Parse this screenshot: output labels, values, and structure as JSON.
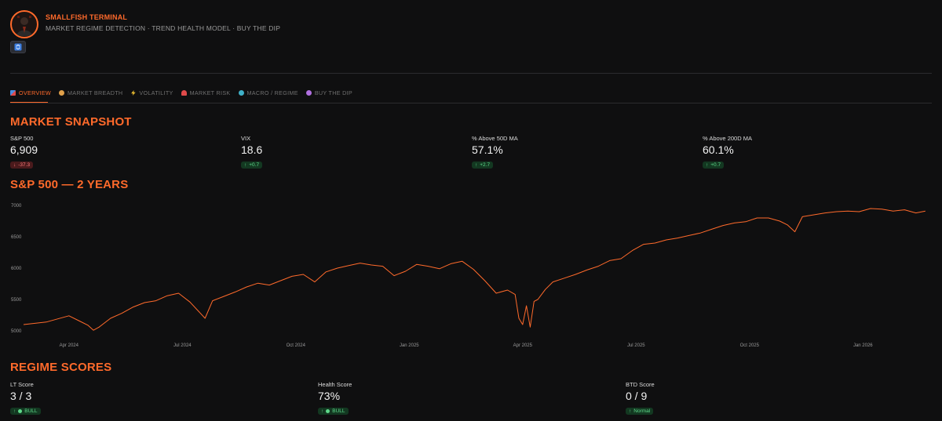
{
  "header": {
    "title": "SMALLFISH TERMINAL",
    "subtitle": "MARKET REGIME DETECTION · TREND HEALTH MODEL · BUY THE DIP"
  },
  "tabs": [
    {
      "label": "OVERVIEW",
      "icon": "chart-icon"
    },
    {
      "label": "MARKET BREADTH",
      "icon": "globe-icon"
    },
    {
      "label": "VOLATILITY",
      "icon": "lightning-icon"
    },
    {
      "label": "MARKET RISK",
      "icon": "siren-icon"
    },
    {
      "label": "MACRO / REGIME",
      "icon": "earth-icon"
    },
    {
      "label": "BUY THE DIP",
      "icon": "bubble-icon"
    }
  ],
  "snapshot": {
    "title": "MARKET SNAPSHOT",
    "metrics": [
      {
        "label": "S&P 500",
        "value": "6,909",
        "change": "-37.3",
        "direction": "down"
      },
      {
        "label": "VIX",
        "value": "18.6",
        "change": "+0.7",
        "direction": "up"
      },
      {
        "label": "% Above 50D MA",
        "value": "57.1%",
        "change": "+2.7",
        "direction": "up"
      },
      {
        "label": "% Above 200D MA",
        "value": "60.1%",
        "change": "+0.7",
        "direction": "up"
      }
    ]
  },
  "chart_title": "S&P 500 — 2 YEARS",
  "chart_data": {
    "type": "line",
    "title": "S&P 500 — 2 YEARS",
    "xlabel": "",
    "ylabel": "",
    "ylim": [
      4950,
      7050
    ],
    "xlim": [
      0,
      24
    ],
    "yticks": [
      5000,
      5500,
      6000,
      6500,
      7000
    ],
    "xticks": [
      {
        "label": "Apr 2024",
        "x": 1.2
      },
      {
        "label": "Jul 2024",
        "x": 4.2
      },
      {
        "label": "Oct 2024",
        "x": 7.2
      },
      {
        "label": "Jan 2025",
        "x": 10.2
      },
      {
        "label": "Apr 2025",
        "x": 13.2
      },
      {
        "label": "Jul 2025",
        "x": 16.2
      },
      {
        "label": "Oct 2025",
        "x": 19.2
      },
      {
        "label": "Jan 2026",
        "x": 22.2
      }
    ],
    "series": [
      {
        "name": "S&P 500",
        "color": "#ff6a2b",
        "x": [
          0,
          0.3,
          0.6,
          0.9,
          1.2,
          1.5,
          1.7,
          1.85,
          2.0,
          2.3,
          2.6,
          2.9,
          3.2,
          3.5,
          3.8,
          4.1,
          4.4,
          4.6,
          4.8,
          5.0,
          5.3,
          5.6,
          5.9,
          6.2,
          6.5,
          6.8,
          7.1,
          7.4,
          7.7,
          8.0,
          8.3,
          8.6,
          8.9,
          9.2,
          9.5,
          9.8,
          10.1,
          10.4,
          10.7,
          11.0,
          11.3,
          11.6,
          11.9,
          12.2,
          12.5,
          12.8,
          13.0,
          13.1,
          13.2,
          13.3,
          13.4,
          13.5,
          13.6,
          13.8,
          14.0,
          14.3,
          14.6,
          14.9,
          15.2,
          15.5,
          15.8,
          16.1,
          16.4,
          16.7,
          17.0,
          17.3,
          17.6,
          17.9,
          18.2,
          18.5,
          18.8,
          19.1,
          19.4,
          19.7,
          20.0,
          20.2,
          20.4,
          20.6,
          20.9,
          21.2,
          21.5,
          21.8,
          22.1,
          22.4,
          22.7,
          23.0,
          23.3,
          23.6,
          23.85
        ],
        "y": [
          5100,
          5120,
          5140,
          5190,
          5240,
          5150,
          5090,
          5010,
          5060,
          5200,
          5280,
          5380,
          5450,
          5480,
          5560,
          5600,
          5460,
          5330,
          5200,
          5480,
          5550,
          5620,
          5700,
          5760,
          5730,
          5800,
          5870,
          5900,
          5780,
          5940,
          6000,
          6040,
          6080,
          6050,
          6030,
          5880,
          5950,
          6060,
          6030,
          5990,
          6070,
          6110,
          5980,
          5800,
          5600,
          5650,
          5580,
          5200,
          5100,
          5400,
          5060,
          5470,
          5500,
          5660,
          5780,
          5840,
          5900,
          5970,
          6030,
          6120,
          6150,
          6280,
          6380,
          6400,
          6450,
          6480,
          6520,
          6560,
          6620,
          6680,
          6720,
          6740,
          6800,
          6800,
          6750,
          6690,
          6580,
          6820,
          6850,
          6880,
          6900,
          6910,
          6900,
          6950,
          6940,
          6910,
          6930,
          6880,
          6909
        ]
      }
    ]
  },
  "regime": {
    "title": "REGIME SCORES",
    "scores": [
      {
        "label": "LT Score",
        "value": "3 / 3",
        "badge": "BULL"
      },
      {
        "label": "Health Score",
        "value": "73%",
        "badge": "BULL"
      },
      {
        "label": "BTD Score",
        "value": "0 / 9",
        "badge": "Normal"
      }
    ]
  }
}
